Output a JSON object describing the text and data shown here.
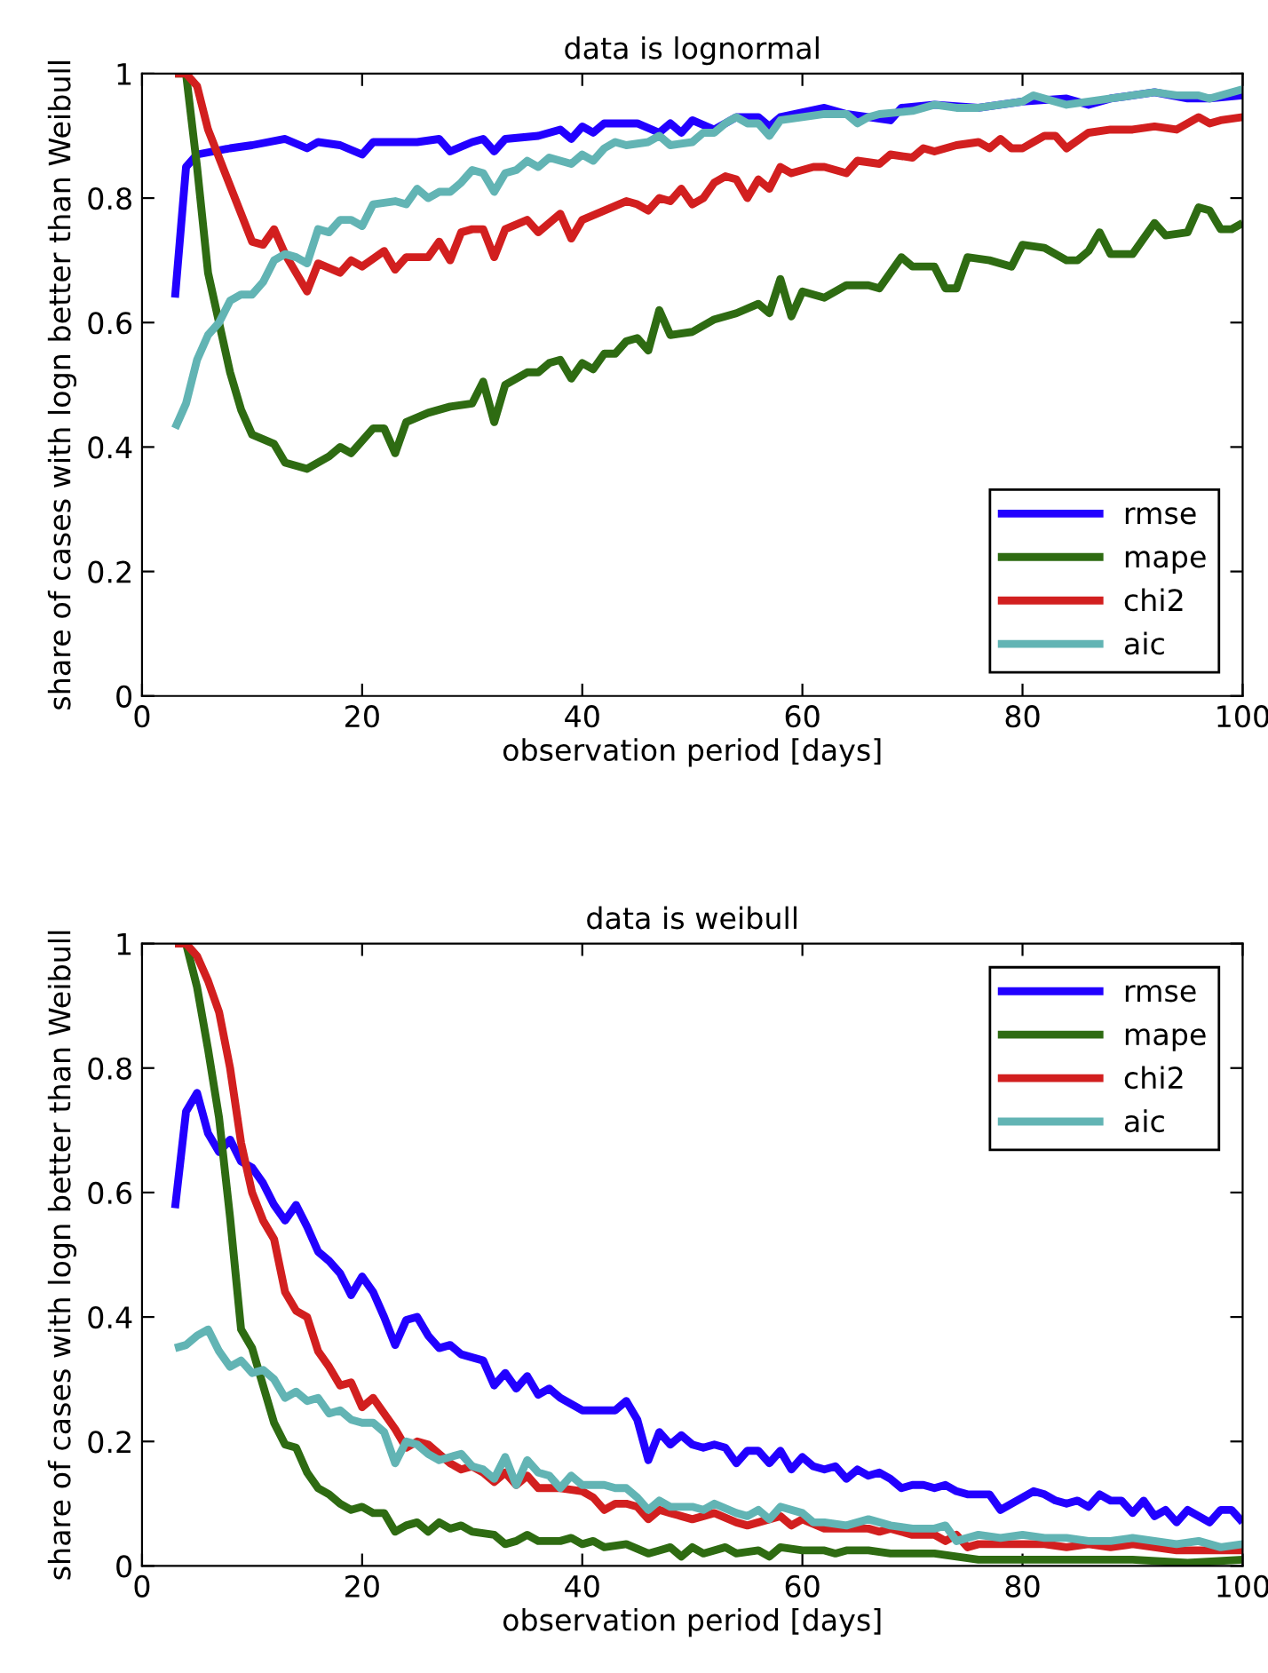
{
  "chart_data": [
    {
      "type": "line",
      "title": "data is lognormal",
      "xlabel": "observation period [days]",
      "ylabel": "share of cases with logn better than Weibull",
      "xlim": [
        0,
        100
      ],
      "ylim": [
        0,
        1
      ],
      "xticks": [
        0,
        20,
        40,
        60,
        80,
        100
      ],
      "yticks": [
        0,
        0.2,
        0.4,
        0.6,
        0.8,
        1
      ],
      "grid": false,
      "legend": "bottom right",
      "marker": "none",
      "line_style": "solid",
      "series": [
        {
          "name": "rmse",
          "color": "#2200ff",
          "x": [
            3,
            4,
            5,
            8,
            10,
            13,
            15,
            16,
            18,
            20,
            21,
            25,
            27,
            28,
            30,
            31,
            32,
            33,
            36,
            38,
            39,
            40,
            41,
            42,
            45,
            47,
            48,
            49,
            50,
            52,
            54,
            56,
            57,
            58,
            62,
            64,
            66,
            68,
            69,
            72,
            76,
            80,
            84,
            86,
            88,
            92,
            95,
            97,
            100
          ],
          "values": [
            0.64,
            0.85,
            0.87,
            0.88,
            0.885,
            0.895,
            0.88,
            0.89,
            0.885,
            0.87,
            0.89,
            0.89,
            0.895,
            0.875,
            0.89,
            0.895,
            0.875,
            0.895,
            0.9,
            0.91,
            0.895,
            0.915,
            0.905,
            0.92,
            0.92,
            0.905,
            0.92,
            0.905,
            0.925,
            0.91,
            0.93,
            0.93,
            0.915,
            0.93,
            0.945,
            0.935,
            0.93,
            0.925,
            0.945,
            0.95,
            0.945,
            0.955,
            0.96,
            0.95,
            0.96,
            0.97,
            0.96,
            0.96,
            0.965
          ]
        },
        {
          "name": "mape",
          "color": "#2e6b12",
          "x": [
            3,
            4,
            5,
            6,
            7,
            8,
            9,
            10,
            12,
            13,
            15,
            17,
            18,
            19,
            21,
            22,
            23,
            24,
            26,
            28,
            30,
            31,
            32,
            33,
            35,
            36,
            37,
            38,
            39,
            40,
            41,
            42,
            43,
            44,
            45,
            46,
            47,
            48,
            50,
            52,
            54,
            56,
            57,
            58,
            59,
            60,
            62,
            64,
            66,
            67,
            69,
            70,
            72,
            73,
            74,
            75,
            77,
            79,
            80,
            82,
            84,
            85,
            86,
            87,
            88,
            90,
            92,
            93,
            95,
            96,
            97,
            98,
            99,
            100
          ],
          "values": [
            1.0,
            1.0,
            0.85,
            0.68,
            0.6,
            0.52,
            0.46,
            0.42,
            0.405,
            0.375,
            0.365,
            0.385,
            0.4,
            0.39,
            0.43,
            0.43,
            0.39,
            0.44,
            0.455,
            0.465,
            0.47,
            0.505,
            0.44,
            0.5,
            0.52,
            0.52,
            0.535,
            0.54,
            0.51,
            0.535,
            0.525,
            0.55,
            0.55,
            0.57,
            0.575,
            0.555,
            0.62,
            0.58,
            0.585,
            0.605,
            0.615,
            0.63,
            0.615,
            0.67,
            0.61,
            0.65,
            0.64,
            0.66,
            0.66,
            0.655,
            0.705,
            0.69,
            0.69,
            0.655,
            0.655,
            0.705,
            0.7,
            0.69,
            0.725,
            0.72,
            0.7,
            0.7,
            0.715,
            0.745,
            0.71,
            0.71,
            0.76,
            0.74,
            0.745,
            0.785,
            0.78,
            0.75,
            0.75,
            0.76
          ]
        },
        {
          "name": "chi2",
          "color": "#d21f1f",
          "x": [
            3,
            4,
            5,
            6,
            8,
            10,
            11,
            12,
            13,
            14,
            15,
            16,
            18,
            19,
            20,
            22,
            23,
            24,
            26,
            27,
            28,
            29,
            30,
            31,
            32,
            33,
            35,
            36,
            38,
            39,
            40,
            42,
            44,
            45,
            46,
            47,
            48,
            49,
            50,
            51,
            52,
            53,
            54,
            55,
            56,
            57,
            58,
            59,
            61,
            62,
            64,
            65,
            67,
            68,
            70,
            71,
            72,
            74,
            76,
            77,
            78,
            79,
            80,
            81,
            82,
            83,
            84,
            86,
            88,
            90,
            92,
            94,
            96,
            97,
            98,
            100
          ],
          "values": [
            1.0,
            1.0,
            0.98,
            0.91,
            0.82,
            0.73,
            0.725,
            0.75,
            0.71,
            0.68,
            0.65,
            0.695,
            0.68,
            0.7,
            0.69,
            0.715,
            0.685,
            0.705,
            0.705,
            0.73,
            0.7,
            0.745,
            0.75,
            0.75,
            0.705,
            0.75,
            0.765,
            0.745,
            0.775,
            0.735,
            0.765,
            0.78,
            0.795,
            0.79,
            0.78,
            0.8,
            0.795,
            0.815,
            0.79,
            0.8,
            0.825,
            0.835,
            0.83,
            0.8,
            0.83,
            0.815,
            0.85,
            0.84,
            0.85,
            0.85,
            0.84,
            0.86,
            0.855,
            0.87,
            0.865,
            0.88,
            0.875,
            0.885,
            0.89,
            0.88,
            0.895,
            0.88,
            0.88,
            0.89,
            0.9,
            0.9,
            0.88,
            0.905,
            0.91,
            0.91,
            0.915,
            0.91,
            0.93,
            0.92,
            0.925,
            0.93
          ]
        },
        {
          "name": "aic",
          "color": "#62b4b4",
          "x": [
            3,
            4,
            5,
            6,
            7,
            8,
            9,
            10,
            11,
            12,
            13,
            14,
            15,
            16,
            17,
            18,
            19,
            20,
            21,
            23,
            24,
            25,
            26,
            27,
            28,
            29,
            30,
            31,
            32,
            33,
            34,
            35,
            36,
            37,
            39,
            40,
            41,
            42,
            43,
            44,
            46,
            47,
            48,
            50,
            51,
            52,
            53,
            54,
            55,
            56,
            57,
            58,
            60,
            62,
            64,
            65,
            66,
            67,
            70,
            72,
            74,
            76,
            78,
            80,
            81,
            83,
            84,
            86,
            88,
            90,
            92,
            94,
            96,
            97,
            99,
            100
          ],
          "values": [
            0.43,
            0.47,
            0.54,
            0.58,
            0.6,
            0.635,
            0.645,
            0.645,
            0.665,
            0.7,
            0.71,
            0.705,
            0.695,
            0.75,
            0.745,
            0.765,
            0.765,
            0.755,
            0.79,
            0.795,
            0.79,
            0.815,
            0.8,
            0.81,
            0.81,
            0.825,
            0.845,
            0.84,
            0.81,
            0.84,
            0.845,
            0.86,
            0.85,
            0.865,
            0.855,
            0.87,
            0.86,
            0.88,
            0.89,
            0.885,
            0.89,
            0.9,
            0.885,
            0.89,
            0.905,
            0.905,
            0.92,
            0.93,
            0.92,
            0.92,
            0.9,
            0.925,
            0.93,
            0.935,
            0.935,
            0.92,
            0.93,
            0.935,
            0.94,
            0.95,
            0.945,
            0.945,
            0.95,
            0.955,
            0.965,
            0.955,
            0.95,
            0.955,
            0.96,
            0.965,
            0.97,
            0.965,
            0.965,
            0.96,
            0.97,
            0.975
          ]
        }
      ]
    },
    {
      "type": "line",
      "title": "data is weibull",
      "xlabel": "observation period [days]",
      "ylabel": "share of cases with logn better than Weibull",
      "xlim": [
        0,
        100
      ],
      "ylim": [
        0,
        1
      ],
      "xticks": [
        0,
        20,
        40,
        60,
        80,
        100
      ],
      "yticks": [
        0,
        0.2,
        0.4,
        0.6,
        0.8,
        1
      ],
      "grid": false,
      "legend": "top right",
      "marker": "none",
      "line_style": "solid",
      "series": [
        {
          "name": "rmse",
          "color": "#2200ff",
          "x": [
            3,
            4,
            5,
            6,
            7,
            8,
            9,
            10,
            11,
            12,
            13,
            14,
            15,
            16,
            17,
            18,
            19,
            20,
            21,
            22,
            23,
            24,
            25,
            26,
            27,
            28,
            29,
            30,
            31,
            32,
            33,
            34,
            35,
            36,
            37,
            38,
            39,
            40,
            42,
            43,
            44,
            45,
            46,
            47,
            48,
            49,
            50,
            51,
            52,
            53,
            54,
            55,
            56,
            57,
            58,
            59,
            60,
            61,
            62,
            63,
            64,
            65,
            66,
            67,
            68,
            69,
            70,
            71,
            72,
            73,
            74,
            75,
            76,
            77,
            78,
            79,
            80,
            81,
            82,
            83,
            84,
            85,
            86,
            87,
            88,
            89,
            90,
            91,
            92,
            93,
            94,
            95,
            96,
            97,
            98,
            99,
            100
          ],
          "values": [
            0.575,
            0.73,
            0.76,
            0.695,
            0.665,
            0.685,
            0.65,
            0.64,
            0.615,
            0.58,
            0.555,
            0.58,
            0.545,
            0.505,
            0.49,
            0.47,
            0.435,
            0.465,
            0.44,
            0.4,
            0.355,
            0.395,
            0.4,
            0.37,
            0.35,
            0.355,
            0.34,
            0.335,
            0.33,
            0.29,
            0.31,
            0.285,
            0.305,
            0.275,
            0.285,
            0.27,
            0.26,
            0.25,
            0.25,
            0.25,
            0.265,
            0.235,
            0.17,
            0.215,
            0.195,
            0.21,
            0.195,
            0.19,
            0.195,
            0.19,
            0.165,
            0.185,
            0.185,
            0.165,
            0.185,
            0.155,
            0.175,
            0.16,
            0.155,
            0.16,
            0.14,
            0.155,
            0.145,
            0.15,
            0.14,
            0.125,
            0.13,
            0.13,
            0.125,
            0.13,
            0.12,
            0.115,
            0.115,
            0.115,
            0.09,
            0.1,
            0.11,
            0.12,
            0.115,
            0.105,
            0.1,
            0.105,
            0.095,
            0.115,
            0.105,
            0.105,
            0.085,
            0.105,
            0.08,
            0.09,
            0.07,
            0.09,
            0.08,
            0.07,
            0.09,
            0.09,
            0.07
          ]
        },
        {
          "name": "mape",
          "color": "#2e6b12",
          "x": [
            3,
            4,
            5,
            6,
            7,
            8,
            9,
            10,
            11,
            12,
            13,
            14,
            15,
            16,
            17,
            18,
            19,
            20,
            21,
            22,
            23,
            24,
            25,
            26,
            27,
            28,
            29,
            30,
            32,
            33,
            34,
            35,
            36,
            38,
            39,
            40,
            41,
            42,
            44,
            46,
            47,
            48,
            49,
            50,
            51,
            53,
            54,
            56,
            57,
            58,
            60,
            62,
            63,
            64,
            66,
            68,
            70,
            72,
            74,
            76,
            78,
            80,
            85,
            90,
            95,
            100
          ],
          "values": [
            1.0,
            1.0,
            0.93,
            0.83,
            0.72,
            0.56,
            0.38,
            0.35,
            0.29,
            0.23,
            0.195,
            0.19,
            0.15,
            0.125,
            0.115,
            0.1,
            0.09,
            0.095,
            0.085,
            0.085,
            0.055,
            0.065,
            0.07,
            0.055,
            0.07,
            0.06,
            0.065,
            0.055,
            0.05,
            0.035,
            0.04,
            0.05,
            0.04,
            0.04,
            0.045,
            0.035,
            0.04,
            0.03,
            0.035,
            0.02,
            0.025,
            0.03,
            0.015,
            0.03,
            0.02,
            0.03,
            0.02,
            0.025,
            0.015,
            0.03,
            0.025,
            0.025,
            0.02,
            0.025,
            0.025,
            0.02,
            0.02,
            0.02,
            0.015,
            0.01,
            0.01,
            0.01,
            0.01,
            0.01,
            0.005,
            0.01
          ]
        },
        {
          "name": "chi2",
          "color": "#d21f1f",
          "x": [
            3,
            4,
            5,
            6,
            7,
            8,
            9,
            10,
            11,
            12,
            13,
            14,
            15,
            16,
            17,
            18,
            19,
            20,
            21,
            22,
            23,
            24,
            25,
            26,
            27,
            28,
            29,
            30,
            31,
            32,
            33,
            34,
            35,
            36,
            38,
            40,
            41,
            42,
            43,
            44,
            45,
            46,
            47,
            48,
            49,
            50,
            52,
            54,
            55,
            56,
            58,
            59,
            60,
            62,
            64,
            66,
            67,
            68,
            70,
            72,
            73,
            74,
            75,
            76,
            78,
            80,
            82,
            84,
            86,
            88,
            90,
            92,
            94,
            96,
            98,
            100
          ],
          "values": [
            1.0,
            1.0,
            0.98,
            0.94,
            0.89,
            0.8,
            0.68,
            0.6,
            0.555,
            0.525,
            0.44,
            0.41,
            0.4,
            0.345,
            0.32,
            0.29,
            0.295,
            0.255,
            0.27,
            0.245,
            0.22,
            0.19,
            0.2,
            0.195,
            0.18,
            0.165,
            0.155,
            0.16,
            0.15,
            0.135,
            0.15,
            0.13,
            0.145,
            0.125,
            0.125,
            0.12,
            0.11,
            0.09,
            0.1,
            0.1,
            0.095,
            0.075,
            0.09,
            0.085,
            0.08,
            0.075,
            0.085,
            0.07,
            0.065,
            0.07,
            0.08,
            0.065,
            0.075,
            0.06,
            0.06,
            0.06,
            0.055,
            0.06,
            0.05,
            0.05,
            0.04,
            0.05,
            0.03,
            0.035,
            0.035,
            0.035,
            0.035,
            0.03,
            0.035,
            0.03,
            0.035,
            0.03,
            0.025,
            0.025,
            0.025,
            0.025
          ]
        },
        {
          "name": "aic",
          "color": "#62b4b4",
          "x": [
            3,
            4,
            5,
            6,
            7,
            8,
            9,
            10,
            11,
            12,
            13,
            14,
            15,
            16,
            17,
            18,
            19,
            20,
            21,
            22,
            23,
            24,
            25,
            26,
            27,
            28,
            29,
            30,
            31,
            32,
            33,
            34,
            35,
            36,
            37,
            38,
            39,
            40,
            42,
            43,
            44,
            45,
            46,
            47,
            48,
            50,
            51,
            52,
            54,
            55,
            56,
            57,
            58,
            60,
            61,
            62,
            64,
            66,
            68,
            70,
            72,
            73,
            74,
            76,
            78,
            80,
            82,
            84,
            86,
            88,
            90,
            92,
            94,
            96,
            98,
            100
          ],
          "values": [
            0.35,
            0.355,
            0.37,
            0.38,
            0.345,
            0.32,
            0.33,
            0.31,
            0.315,
            0.3,
            0.27,
            0.28,
            0.265,
            0.27,
            0.245,
            0.25,
            0.235,
            0.23,
            0.23,
            0.215,
            0.165,
            0.2,
            0.195,
            0.18,
            0.17,
            0.175,
            0.18,
            0.16,
            0.155,
            0.14,
            0.175,
            0.13,
            0.17,
            0.15,
            0.145,
            0.125,
            0.145,
            0.13,
            0.13,
            0.125,
            0.125,
            0.11,
            0.09,
            0.105,
            0.095,
            0.095,
            0.09,
            0.1,
            0.085,
            0.08,
            0.09,
            0.075,
            0.095,
            0.085,
            0.07,
            0.07,
            0.065,
            0.075,
            0.065,
            0.06,
            0.06,
            0.065,
            0.04,
            0.05,
            0.045,
            0.05,
            0.045,
            0.045,
            0.04,
            0.04,
            0.045,
            0.04,
            0.035,
            0.04,
            0.03,
            0.035
          ]
        }
      ]
    }
  ]
}
